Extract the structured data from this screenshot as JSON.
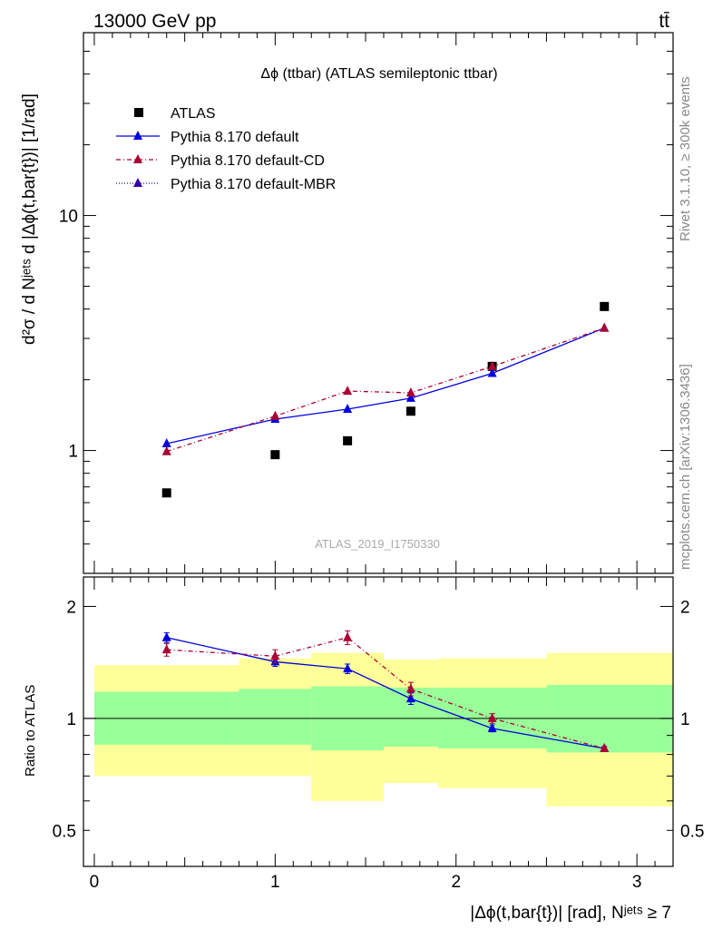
{
  "header": {
    "energy": "13000 GeV pp",
    "process": "tt̄"
  },
  "side_labels": {
    "rivet": "Rivet 3.1.10, ≥ 300k events",
    "mcplots": "mcplots.cern.ch [arXiv:1306.3436]"
  },
  "chart_data": [
    {
      "type": "scatter",
      "title": "Δϕ (ttbar) (ATLAS semileptonic ttbar)",
      "watermark": "ATLAS_2019_I1750330",
      "ylabel": "d²σ / d Nʲᵉᵗˢ d |Δϕ(t,bar{t})| [1/rad]",
      "yscale": "log",
      "ylim": [
        0.3,
        60
      ],
      "xlim": [
        -0.06,
        3.2
      ],
      "yticks": [
        1,
        10
      ],
      "ytick_labels": [
        "1",
        "10"
      ],
      "legend_position": "top-left",
      "series": [
        {
          "name": "ATLAS",
          "color": "#000000",
          "marker": "square",
          "x": [
            0.4,
            1.0,
            1.4,
            1.75,
            2.2,
            2.82
          ],
          "y": [
            0.66,
            0.96,
            1.1,
            1.47,
            2.28,
            4.1
          ]
        },
        {
          "name": "Pythia 8.170 default",
          "color": "#0000dd",
          "marker": "triangle",
          "line": "solid",
          "x": [
            0.4,
            1.0,
            1.4,
            1.75,
            2.2,
            2.82
          ],
          "y": [
            1.07,
            1.36,
            1.5,
            1.67,
            2.13,
            3.32
          ]
        },
        {
          "name": "Pythia 8.170 default-CD",
          "color": "#aa0033",
          "marker": "triangle",
          "line": "dashdot",
          "x": [
            0.4,
            1.0,
            1.4,
            1.75,
            2.2,
            2.82
          ],
          "y": [
            0.99,
            1.4,
            1.79,
            1.76,
            2.28,
            3.32
          ]
        },
        {
          "name": "Pythia 8.170 default-MBR",
          "color": "#3300aa",
          "marker": "triangle",
          "line": "dotted",
          "x": [],
          "y": []
        }
      ]
    },
    {
      "type": "line",
      "xlabel": "|Δϕ(t,bar{t})| [rad], Nʲᵉᵗˢ ≥ 7",
      "ylabel": "Ratio to ATLAS",
      "yscale": "log",
      "ylim": [
        0.4,
        2.4
      ],
      "xlim": [
        -0.06,
        3.2
      ],
      "xticks": [
        0,
        1,
        2,
        3
      ],
      "xtick_labels": [
        "0",
        "1",
        "2",
        "3"
      ],
      "yticks": [
        0.5,
        1,
        2
      ],
      "ytick_labels": [
        "0.5",
        "1",
        "2"
      ],
      "bands": [
        {
          "x0": 0.0,
          "x1": 0.8,
          "inner": [
            0.85,
            1.18
          ],
          "outer": [
            0.7,
            1.39
          ]
        },
        {
          "x0": 0.8,
          "x1": 1.2,
          "inner": [
            0.85,
            1.2
          ],
          "outer": [
            0.7,
            1.45
          ]
        },
        {
          "x0": 1.2,
          "x1": 1.6,
          "inner": [
            0.82,
            1.22
          ],
          "outer": [
            0.6,
            1.5
          ]
        },
        {
          "x0": 1.6,
          "x1": 1.9,
          "inner": [
            0.84,
            1.21
          ],
          "outer": [
            0.67,
            1.44
          ]
        },
        {
          "x0": 1.9,
          "x1": 2.5,
          "inner": [
            0.83,
            1.21
          ],
          "outer": [
            0.65,
            1.45
          ]
        },
        {
          "x0": 2.5,
          "x1": 3.2,
          "inner": [
            0.81,
            1.23
          ],
          "outer": [
            0.58,
            1.5
          ]
        }
      ],
      "series": [
        {
          "name": "Pythia 8.170 default",
          "color": "#0000dd",
          "line": "solid",
          "x": [
            0.4,
            1.0,
            1.4,
            1.75,
            2.2,
            2.82
          ],
          "y": [
            1.65,
            1.42,
            1.36,
            1.13,
            0.94,
            0.83
          ],
          "err": [
            0.05,
            0.04,
            0.04,
            0.04,
            0.02,
            0.01
          ]
        },
        {
          "name": "Pythia 8.170 default-CD",
          "color": "#aa0033",
          "line": "dashdot",
          "x": [
            0.4,
            1.0,
            1.4,
            1.75,
            2.2,
            2.82
          ],
          "y": [
            1.53,
            1.47,
            1.65,
            1.2,
            1.0,
            0.83
          ],
          "err": [
            0.06,
            0.06,
            0.07,
            0.05,
            0.03,
            0.01
          ]
        }
      ]
    }
  ]
}
